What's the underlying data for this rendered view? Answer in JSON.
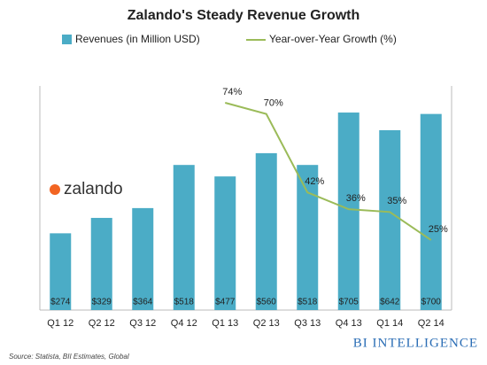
{
  "chart_data": {
    "type": "bar_line",
    "title": "Zalando's Steady Revenue Growth",
    "categories": [
      "Q1 12",
      "Q2 12",
      "Q3 12",
      "Q4 12",
      "Q1 13",
      "Q2 13",
      "Q3 13",
      "Q4 13",
      "Q1 14",
      "Q2 14"
    ],
    "series": [
      {
        "name": "Revenues (in Million USD)",
        "type": "bar",
        "color": "#4bacc6",
        "values": [
          274,
          329,
          364,
          518,
          477,
          560,
          518,
          705,
          642,
          700
        ],
        "value_labels": [
          "$274",
          "$329",
          "$364",
          "$518",
          "$477",
          "$560",
          "$518",
          "$705",
          "$642",
          "$700"
        ]
      },
      {
        "name": "Year-over-Year Growth (%)",
        "type": "line",
        "axis": "y2",
        "color": "#9bbb59",
        "values": [
          null,
          null,
          null,
          null,
          74,
          70,
          42,
          36,
          35,
          25
        ],
        "value_labels": [
          null,
          null,
          null,
          null,
          "74%",
          "70%",
          "42%",
          "36%",
          "35%",
          "25%"
        ]
      }
    ],
    "ylim": [
      0,
      800
    ],
    "y2lim": [
      0,
      80
    ],
    "source": "Source: Statista, BII Estimates, Global",
    "logo_text": "zalando",
    "brand": "BI INTELLIGENCE"
  }
}
